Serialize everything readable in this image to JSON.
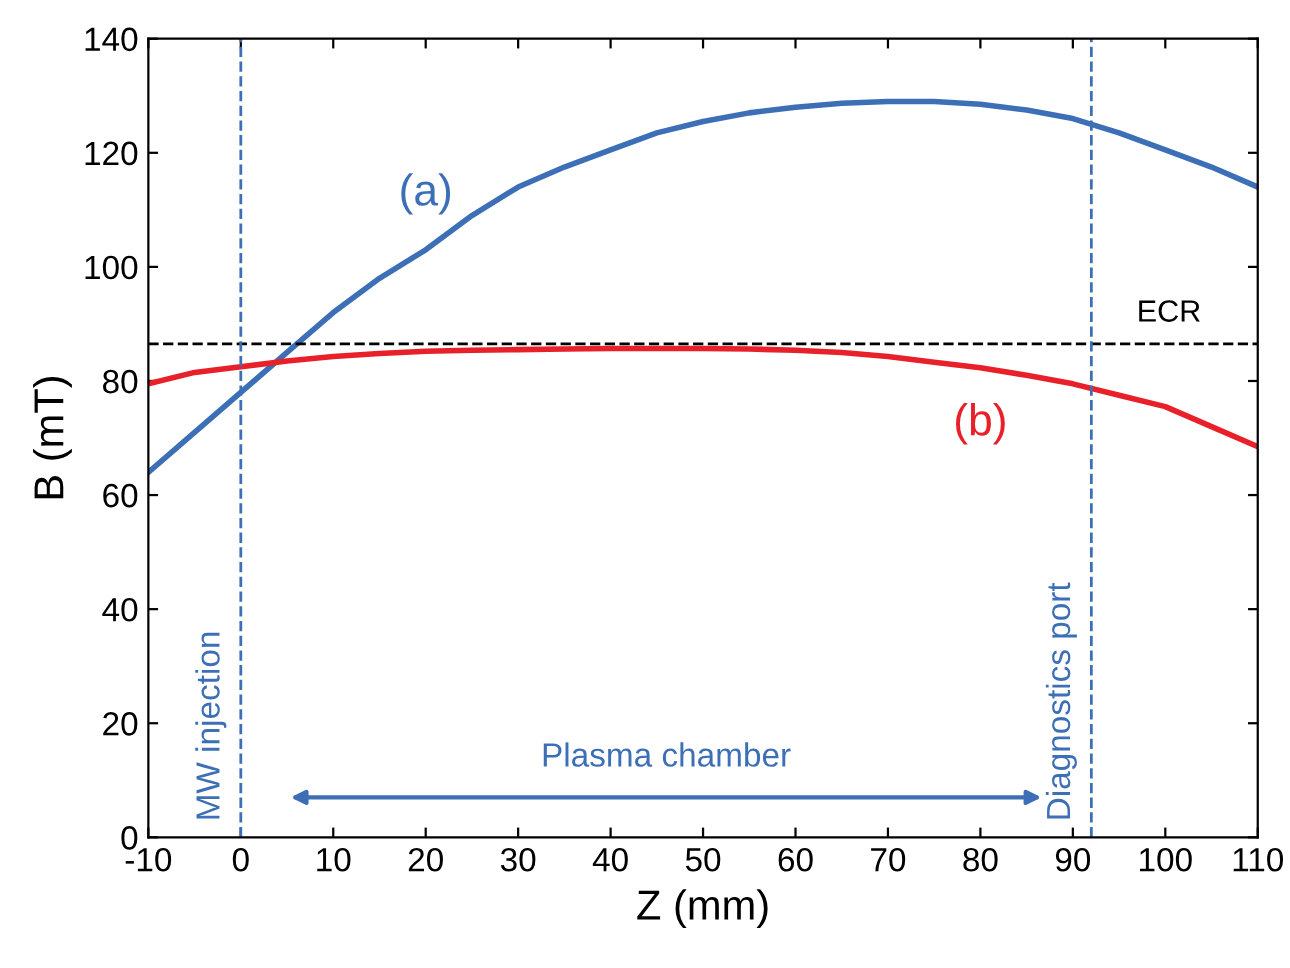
{
  "chart_data": {
    "type": "line",
    "xlabel": "Z (mm)",
    "ylabel": "B (mT)",
    "xlim": [
      -10,
      110
    ],
    "ylim": [
      0,
      140
    ],
    "xticks": [
      -10,
      0,
      10,
      20,
      30,
      40,
      50,
      60,
      70,
      80,
      90,
      100,
      110
    ],
    "yticks": [
      0,
      20,
      40,
      60,
      80,
      100,
      120,
      140
    ],
    "grid": false,
    "marker": "none",
    "line_style": "solid",
    "series": [
      {
        "name": "(a)",
        "color": "#3d6fb6",
        "x": [
          -10,
          -5,
          0,
          5,
          10,
          15,
          20,
          25,
          30,
          35,
          40,
          45,
          50,
          55,
          60,
          65,
          70,
          75,
          80,
          85,
          90,
          95,
          100,
          105,
          110
        ],
        "values": [
          64,
          71,
          78,
          85,
          92,
          98,
          103,
          109,
          114,
          117.5,
          120.5,
          123.5,
          125.5,
          127,
          128,
          128.7,
          129,
          129,
          128.5,
          127.5,
          126,
          123.5,
          120.5,
          117.5,
          114
        ]
      },
      {
        "name": "(b)",
        "color": "#e8202a",
        "x": [
          -10,
          -5,
          0,
          5,
          10,
          15,
          20,
          25,
          30,
          35,
          40,
          45,
          50,
          55,
          60,
          65,
          70,
          75,
          80,
          85,
          90,
          95,
          100,
          105,
          110
        ],
        "values": [
          79.5,
          81.5,
          82.5,
          83.5,
          84.3,
          84.8,
          85.2,
          85.4,
          85.5,
          85.6,
          85.7,
          85.7,
          85.7,
          85.6,
          85.4,
          85,
          84.3,
          83.3,
          82.3,
          81,
          79.5,
          77.5,
          75.5,
          72,
          68.5
        ]
      }
    ],
    "ref_lines": [
      {
        "axis": "y",
        "value": 86.5,
        "label": "ECR",
        "color": "#000000",
        "line_style": "dashed"
      },
      {
        "axis": "x",
        "value": 0,
        "label": "MW injection",
        "color": "#3d6fb6",
        "line_style": "dashed"
      },
      {
        "axis": "x",
        "value": 92,
        "label": "Diagnostics port",
        "color": "#3d6fb6",
        "line_style": "dashed"
      }
    ],
    "annotations": [
      "Plasma chamber"
    ]
  }
}
